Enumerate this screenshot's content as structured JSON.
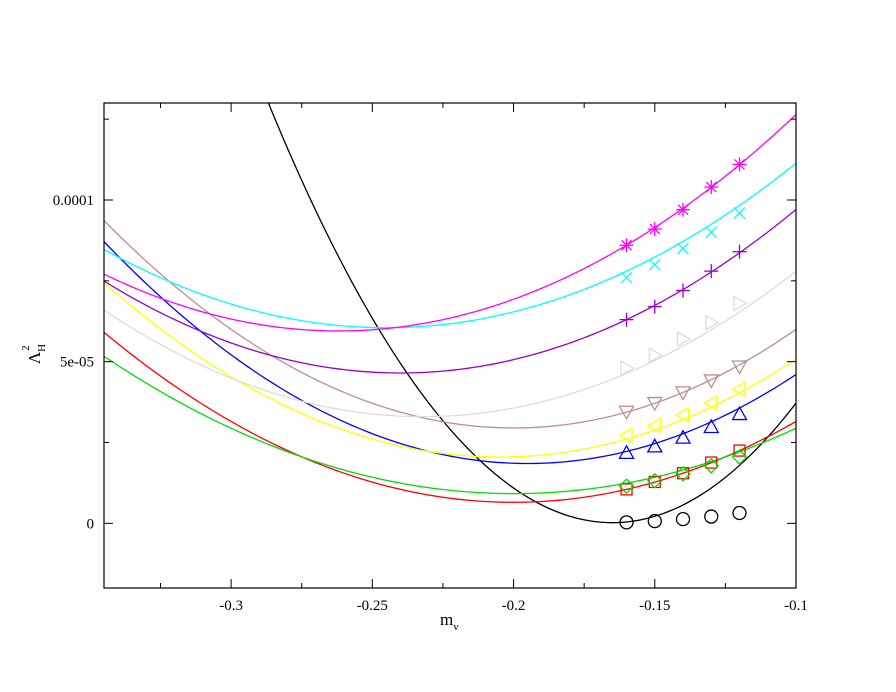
{
  "chart_data": {
    "type": "line",
    "xlabel": "m",
    "xlabel_subscript": "v",
    "ylabel": "Λ",
    "ylabel_subscript": "H",
    "ylabel_superscript": "2",
    "xlim": [
      -0.345,
      -0.1
    ],
    "ylim": [
      -2e-05,
      0.00013
    ],
    "xticks": [
      {
        "value": -0.3,
        "label": "-0.3"
      },
      {
        "value": -0.25,
        "label": "-0.25"
      },
      {
        "value": -0.2,
        "label": "-0.2"
      },
      {
        "value": -0.15,
        "label": "-0.15"
      },
      {
        "value": -0.1,
        "label": "-0.1"
      }
    ],
    "xminor": [
      -0.325,
      -0.275,
      -0.225,
      -0.175,
      -0.125
    ],
    "yticks": [
      {
        "value": 0,
        "label": "0"
      },
      {
        "value": 5e-05,
        "label": "5e-05"
      },
      {
        "value": 0.0001,
        "label": "0.0001"
      }
    ],
    "yminor": [
      2.5e-05,
      7.5e-05,
      0.000125
    ],
    "grid": false,
    "series": [
      {
        "color": "#000000",
        "marker": "circle",
        "x": [
          -0.16,
          -0.15,
          -0.14,
          -0.13,
          -0.12
        ],
        "y": [
          3e-07,
          7e-07,
          1.3e-06,
          2.1e-06,
          3.2e-06
        ],
        "fit": {
          "vertex_x": -0.165,
          "vertex_y": 2e-07,
          "curvature": 0.00875
        }
      },
      {
        "color": "#ff0000",
        "marker": "square",
        "x": [
          -0.16,
          -0.15,
          -0.14,
          -0.13,
          -0.12
        ],
        "y": [
          1.05e-05,
          1.28e-05,
          1.55e-05,
          1.88e-05,
          2.25e-05
        ],
        "fit": {
          "vertex_x": -0.2,
          "vertex_y": 6.5e-06,
          "curvature": 0.0025
        }
      },
      {
        "color": "#00dd00",
        "marker": "diamond",
        "x": [
          -0.16,
          -0.15,
          -0.14,
          -0.13,
          -0.12
        ],
        "y": [
          1.15e-05,
          1.32e-05,
          1.53e-05,
          1.78e-05,
          2.05e-05
        ],
        "fit": {
          "vertex_x": -0.2,
          "vertex_y": 9.2e-06,
          "curvature": 0.00202
        }
      },
      {
        "color": "#0000ff",
        "marker": "triangle-up",
        "x": [
          -0.16,
          -0.15,
          -0.14,
          -0.13,
          -0.12
        ],
        "y": [
          2.18e-05,
          2.38e-05,
          2.65e-05,
          2.98e-05,
          3.38e-05
        ],
        "fit": {
          "vertex_x": -0.195,
          "vertex_y": 1.85e-05,
          "curvature": 0.00305
        }
      },
      {
        "color": "#ffff00",
        "marker": "triangle-left",
        "x": [
          -0.16,
          -0.15,
          -0.14,
          -0.13,
          -0.12
        ],
        "y": [
          2.72e-05,
          3.02e-05,
          3.35e-05,
          3.72e-05,
          4.15e-05
        ],
        "fit": {
          "vertex_x": -0.205,
          "vertex_y": 2.05e-05,
          "curvature": 0.00275
        }
      },
      {
        "color": "#bc8f8f",
        "marker": "triangle-down",
        "x": [
          -0.16,
          -0.15,
          -0.14,
          -0.13,
          -0.12
        ],
        "y": [
          3.45e-05,
          3.72e-05,
          4.05e-05,
          4.42e-05,
          4.85e-05
        ],
        "fit": {
          "vertex_x": -0.2,
          "vertex_y": 2.95e-05,
          "curvature": 0.00305
        }
      },
      {
        "color": "#dcdcdc",
        "marker": "triangle-right",
        "x": [
          -0.16,
          -0.15,
          -0.14,
          -0.13,
          -0.12
        ],
        "y": [
          4.8e-05,
          5.2e-05,
          5.7e-05,
          6.2e-05,
          6.8e-05
        ],
        "fit": {
          "vertex_x": -0.232,
          "vertex_y": 3.3e-05,
          "curvature": 0.00258
        }
      },
      {
        "color": "#9400d3",
        "marker": "plus",
        "x": [
          -0.16,
          -0.15,
          -0.14,
          -0.13,
          -0.12
        ],
        "y": [
          6.3e-05,
          6.7e-05,
          7.2e-05,
          7.8e-05,
          8.4e-05
        ],
        "fit": {
          "vertex_x": -0.24,
          "vertex_y": 4.65e-05,
          "curvature": 0.00258
        }
      },
      {
        "color": "#00ffff",
        "marker": "cross",
        "x": [
          -0.16,
          -0.15,
          -0.14,
          -0.13,
          -0.12
        ],
        "y": [
          7.6e-05,
          8e-05,
          8.5e-05,
          9e-05,
          9.6e-05
        ],
        "fit": {
          "vertex_x": -0.245,
          "vertex_y": 6.05e-05,
          "curvature": 0.00242
        }
      },
      {
        "color": "#ff00ff",
        "marker": "star",
        "x": [
          -0.16,
          -0.15,
          -0.14,
          -0.13,
          -0.12
        ],
        "y": [
          8.6e-05,
          9.1e-05,
          9.7e-05,
          0.000104,
          0.000111
        ],
        "fit": {
          "vertex_x": -0.262,
          "vertex_y": 5.95e-05,
          "curvature": 0.00255
        }
      }
    ]
  }
}
